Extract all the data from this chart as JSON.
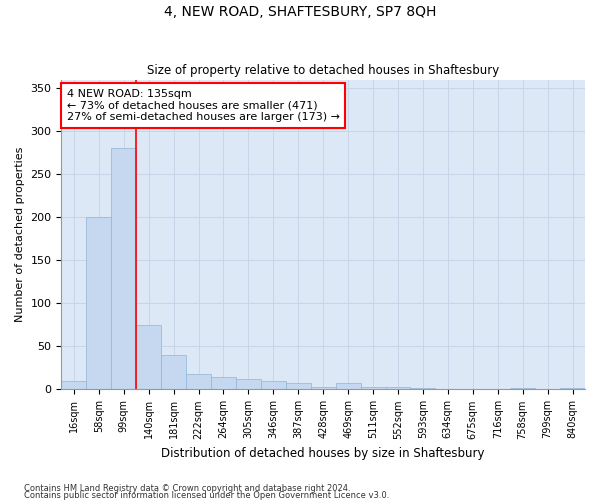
{
  "title": "4, NEW ROAD, SHAFTESBURY, SP7 8QH",
  "subtitle": "Size of property relative to detached houses in Shaftesbury",
  "xlabel": "Distribution of detached houses by size in Shaftesbury",
  "ylabel": "Number of detached properties",
  "bar_color": "#c5d8f0",
  "bar_edge_color": "#8fb4d8",
  "grid_color": "#c8d4e8",
  "background_color": "#dce8f5",
  "bin_labels": [
    "16sqm",
    "58sqm",
    "99sqm",
    "140sqm",
    "181sqm",
    "222sqm",
    "264sqm",
    "305sqm",
    "346sqm",
    "387sqm",
    "428sqm",
    "469sqm",
    "511sqm",
    "552sqm",
    "593sqm",
    "634sqm",
    "675sqm",
    "716sqm",
    "758sqm",
    "799sqm",
    "840sqm"
  ],
  "bar_heights": [
    10,
    200,
    280,
    75,
    40,
    18,
    15,
    12,
    10,
    8,
    3,
    8,
    3,
    3,
    2,
    0,
    0,
    0,
    2,
    0,
    2
  ],
  "ylim": [
    0,
    360
  ],
  "yticks": [
    0,
    50,
    100,
    150,
    200,
    250,
    300,
    350
  ],
  "property_line_x": 2.5,
  "annotation_text": "4 NEW ROAD: 135sqm\n← 73% of detached houses are smaller (471)\n27% of semi-detached houses are larger (173) →",
  "footnote1": "Contains HM Land Registry data © Crown copyright and database right 2024.",
  "footnote2": "Contains public sector information licensed under the Open Government Licence v3.0."
}
